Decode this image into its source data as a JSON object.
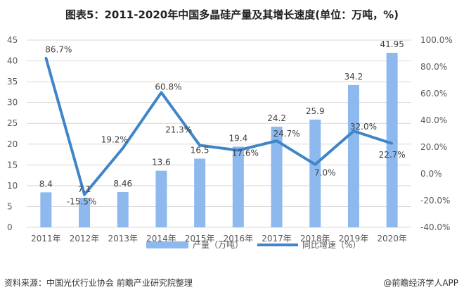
{
  "title": "图表5：2011-2020年中国多晶硅产量及其增长速度(单位：万吨，%)",
  "footer": {
    "source": "资料来源：中国光伏行业协会 前瞻产业研究院整理",
    "brand": "@前瞻经济学人APP"
  },
  "colors": {
    "bar": "#8db9ef",
    "line": "#3f86c8",
    "grid": "#d9d9d9",
    "text": "#595959"
  },
  "chart_data": {
    "type": "bar+line",
    "title": "图表5：2011-2020年中国多晶硅产量及其增长速度(单位：万吨，%)",
    "categories": [
      "2011年",
      "2012年",
      "2013年",
      "2014年",
      "2015年",
      "2016年",
      "2017年",
      "2018年",
      "2019年",
      "2020年"
    ],
    "series": [
      {
        "name": "产量（万吨）",
        "type": "bar",
        "axis": "left",
        "values": [
          8.4,
          7.1,
          8.46,
          13.6,
          16.5,
          19.4,
          24.2,
          25.9,
          34.2,
          41.95
        ],
        "labels": [
          "8.4",
          "7.1",
          "8.46",
          "13.6",
          "16.5",
          "19.4",
          "24.2",
          "25.9",
          "34.2",
          "41.95"
        ]
      },
      {
        "name": "同比增速（%）",
        "type": "line",
        "axis": "right",
        "values": [
          86.7,
          -15.5,
          19.2,
          60.8,
          21.3,
          17.6,
          24.7,
          7.0,
          32.0,
          22.7
        ],
        "labels": [
          "86.7%",
          "-15.5%",
          "19.2%",
          "60.8%",
          "21.3%",
          "17.6%",
          "24.7%",
          "7.0%",
          "32.0%",
          "22.7%"
        ]
      }
    ],
    "left_axis": {
      "range": [
        0,
        45
      ],
      "ticks": [
        "0",
        "5",
        "10",
        "15",
        "20",
        "25",
        "30",
        "35",
        "40",
        "45"
      ]
    },
    "right_axis": {
      "range": [
        -40,
        100
      ],
      "ticks": [
        "-40.0%",
        "-20.0%",
        "0.0%",
        "20.0%",
        "40.0%",
        "60.0%",
        "80.0%",
        "100.0%"
      ]
    },
    "grid": true,
    "legend": "bottom"
  }
}
